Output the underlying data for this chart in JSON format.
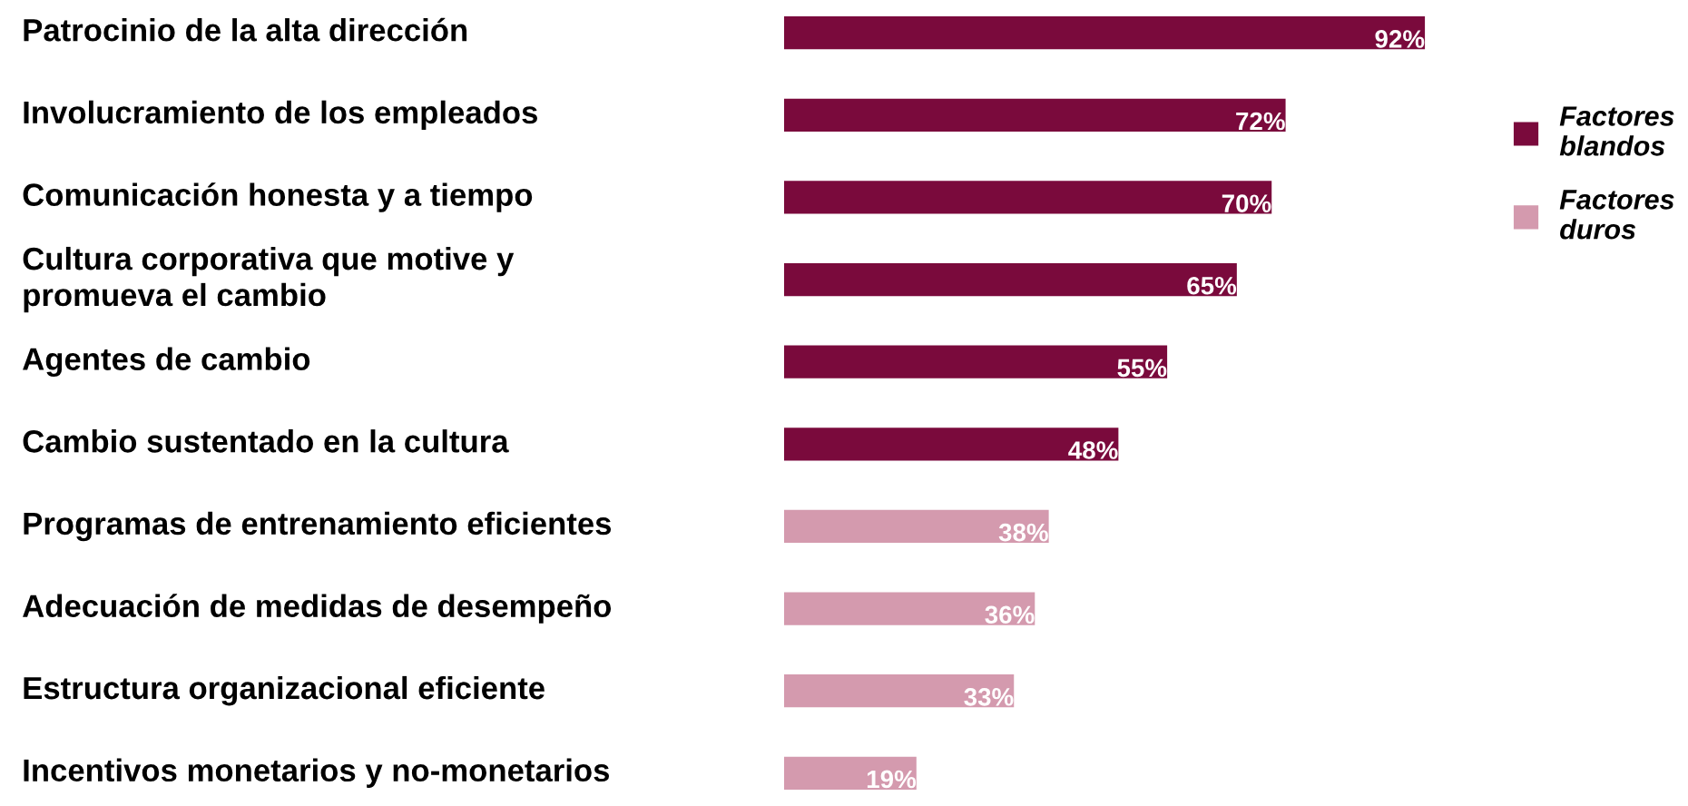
{
  "chart_data": {
    "type": "bar",
    "orientation": "horizontal",
    "legend": "right",
    "categories": [
      "Patrocinio de la alta dirección",
      "Involucramiento de los empleados",
      "Comunicación honesta y a tiempo",
      "Cultura corporativa que motive y\npromueva el cambio",
      "Agentes de cambio",
      "Cambio sustentado en la cultura",
      "Programas de entrenamiento eficientes",
      "Adecuación de medidas de desempeño",
      "Estructura organizacional eficiente",
      "Incentivos monetarios y no-monetarios"
    ],
    "series": [
      {
        "name": "Factores blandos",
        "color": "#7a0a3c",
        "values": [
          92,
          72,
          70,
          65,
          55,
          48,
          null,
          null,
          null,
          null
        ],
        "value_labels": [
          "92%",
          "72%",
          "70%",
          "65%",
          "55%",
          "48%",
          null,
          null,
          null,
          null
        ]
      },
      {
        "name": "Factores duros",
        "color": "#d49aae",
        "values": [
          null,
          null,
          null,
          null,
          null,
          null,
          38,
          36,
          33,
          19
        ],
        "value_labels": [
          null,
          null,
          null,
          null,
          null,
          null,
          "38%",
          "36%",
          "33%",
          "19%"
        ]
      }
    ]
  }
}
